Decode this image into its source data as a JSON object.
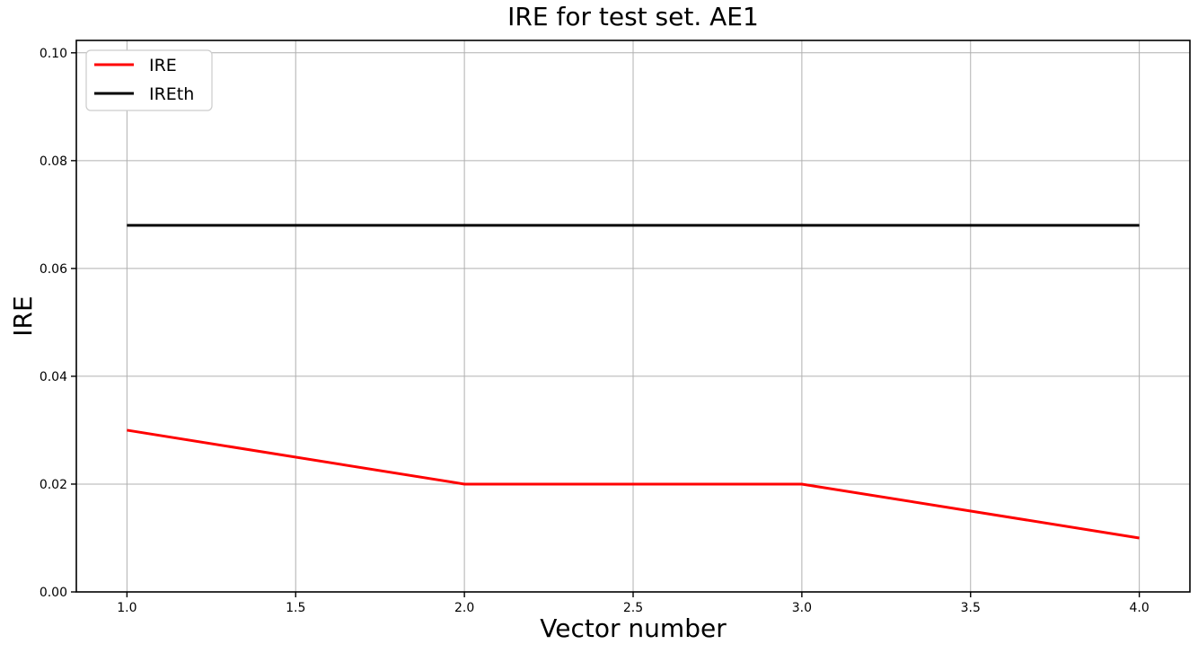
{
  "figure": {
    "background": "#ffffff"
  },
  "chart_data": {
    "type": "line",
    "title": "IRE for test set. AE1",
    "xlabel": "Vector number",
    "ylabel": "IRE",
    "x": [
      1,
      2,
      3,
      4
    ],
    "series": [
      {
        "name": "IRE",
        "color": "#ff0000",
        "linewidth": 3,
        "values": [
          0.03,
          0.02,
          0.02,
          0.01
        ]
      },
      {
        "name": "IREth",
        "color": "#000000",
        "linewidth": 3,
        "values": [
          0.068,
          0.068,
          0.068,
          0.068
        ]
      }
    ],
    "xlim": [
      0.85,
      4.15
    ],
    "ylim": [
      0,
      0.1023
    ],
    "xticks": {
      "values": [
        1.0,
        1.5,
        2.0,
        2.5,
        3.0,
        3.5,
        4.0
      ],
      "labels": [
        "1.0",
        "1.5",
        "2.0",
        "2.5",
        "3.0",
        "3.5",
        "4.0"
      ]
    },
    "yticks": {
      "values": [
        0.0,
        0.02,
        0.04,
        0.06,
        0.08,
        0.1
      ],
      "labels": [
        "0.00",
        "0.02",
        "0.04",
        "0.06",
        "0.08",
        "0.10"
      ]
    },
    "grid": true,
    "grid_color": "#b0b0b0",
    "axis_color": "#000000",
    "tick_label_fontsize": 14,
    "legend": {
      "position": "upper-left",
      "entries": [
        "IRE",
        "IREth"
      ],
      "fontsize": 19,
      "border_color": "#cccccc",
      "background": "#ffffff"
    }
  }
}
